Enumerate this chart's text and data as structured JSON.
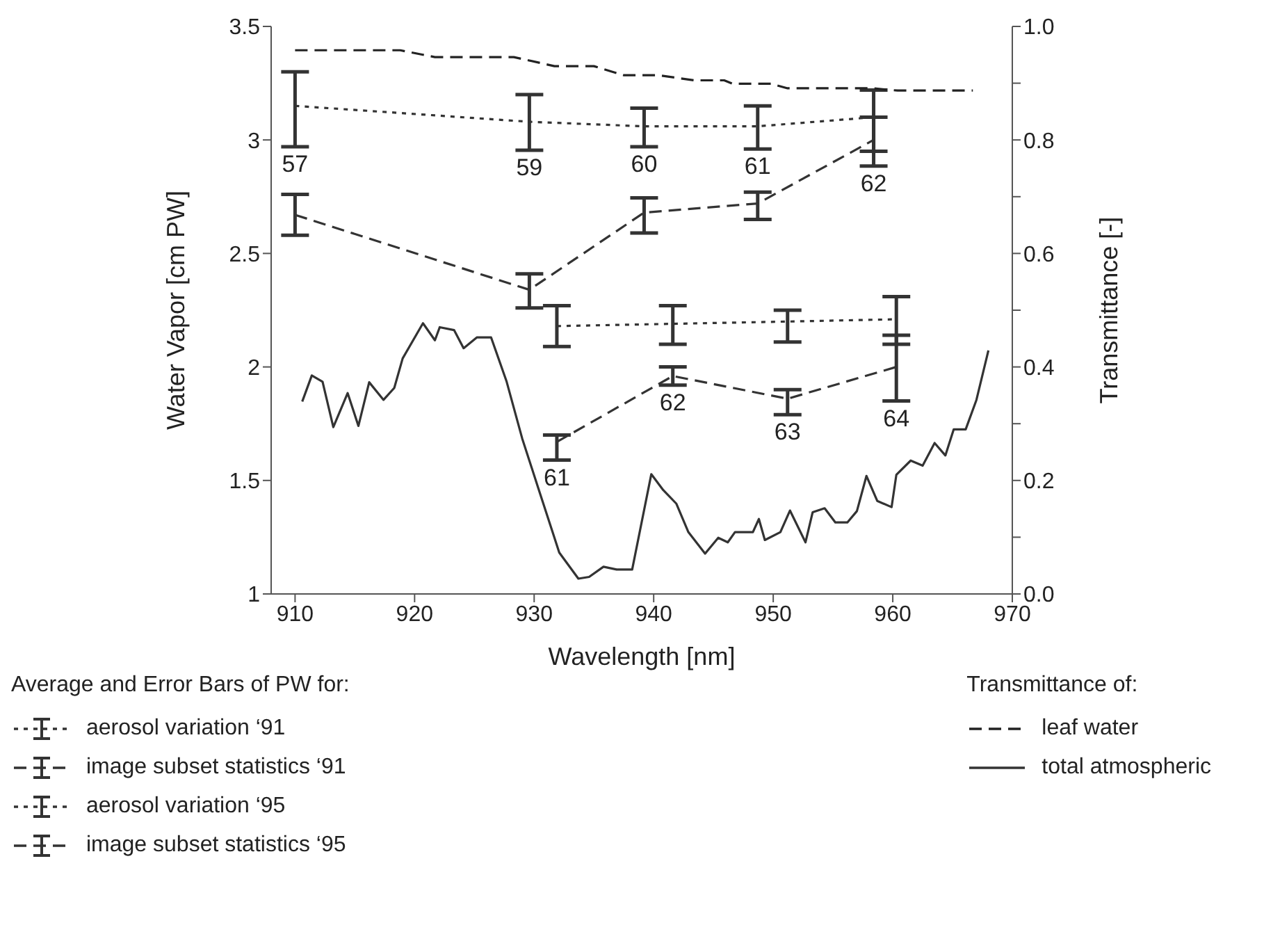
{
  "chart_data": {
    "type": "line",
    "xlabel": "Wavelength [nm]",
    "ylabel": "Water Vapor [cm PW]",
    "y2label": "Transmittance [-]",
    "xlim": [
      908,
      970
    ],
    "xticks": [
      910,
      920,
      930,
      940,
      950,
      960,
      970
    ],
    "ylim": [
      1,
      3.5
    ],
    "yticks": [
      1,
      1.5,
      2,
      2.5,
      3,
      3.5
    ],
    "y2lim": [
      0,
      1
    ],
    "y2ticks": [
      {
        "value": 0,
        "label": "0.0"
      },
      {
        "value": 0.1,
        "label": null
      },
      {
        "value": 0.2,
        "label": "0.2"
      },
      {
        "value": 0.3,
        "label": null
      },
      {
        "value": 0.4,
        "label": "0.4"
      },
      {
        "value": 0.5,
        "label": null
      },
      {
        "value": 0.6,
        "label": "0.6"
      },
      {
        "value": 0.7,
        "label": null
      },
      {
        "value": 0.8,
        "label": "0.8"
      },
      {
        "value": 0.9,
        "label": null
      },
      {
        "value": 1,
        "label": "1.0"
      }
    ],
    "legend": "bottom",
    "marker": "none",
    "legend_title": "Average and Error Bars of PW for:",
    "series": [
      {
        "name": "aerosol variation ‘91",
        "color": "#333333",
        "line_style": "dotted",
        "x": [
          910,
          929.6,
          939.2,
          948.7,
          958.4
        ],
        "values": [
          3.15,
          3.08,
          3.06,
          3.06,
          3.1
        ],
        "errors": [
          [
            2.97,
            3.3
          ],
          [
            2.955,
            3.2
          ],
          [
            2.97,
            3.14
          ],
          [
            2.96,
            3.15
          ],
          [
            2.95,
            3.22
          ]
        ]
      },
      {
        "name": "image subset statistics ‘91",
        "color": "#333333",
        "line_style": "dashed",
        "x": [
          910,
          929.6,
          939.2,
          948.7,
          958.4
        ],
        "values": [
          2.67,
          2.34,
          2.68,
          2.72,
          3.0
        ],
        "errors": [
          [
            2.58,
            2.76
          ],
          [
            2.26,
            2.41
          ],
          [
            2.59,
            2.745
          ],
          [
            2.65,
            2.77
          ],
          [
            2.885,
            3.1
          ]
        ]
      },
      {
        "name": "aerosol variation ‘95",
        "color": "#333333",
        "line_style": "dotted",
        "x": [
          931.9,
          941.6,
          951.2,
          960.3
        ],
        "values": [
          2.18,
          2.19,
          2.2,
          2.21
        ],
        "errors": [
          [
            2.09,
            2.27
          ],
          [
            2.1,
            2.27
          ],
          [
            2.11,
            2.25
          ],
          [
            2.1,
            2.31
          ]
        ]
      },
      {
        "name": "image subset statistics ‘95",
        "color": "#333333",
        "line_style": "dashed",
        "x": [
          931.9,
          941.6,
          951.2,
          960.3
        ],
        "values": [
          1.67,
          1.96,
          1.86,
          2.0
        ],
        "errors": [
          [
            1.59,
            1.7
          ],
          [
            1.92,
            2.0
          ],
          [
            1.79,
            1.9
          ],
          [
            1.85,
            2.14
          ]
        ]
      },
      {
        "name": "leaf  water",
        "color": "#222222",
        "line_style": "dashed",
        "axis": "y2",
        "x": [
          910,
          918.8,
          921.7,
          928.3,
          931.7,
          935,
          937.5,
          940.4,
          943.4,
          945.9,
          946.6,
          949.8,
          951.2,
          958.3,
          960.4,
          966.7
        ],
        "values": [
          0.958,
          0.958,
          0.946,
          0.946,
          0.93,
          0.93,
          0.914,
          0.914,
          0.905,
          0.905,
          0.899,
          0.899,
          0.891,
          0.891,
          0.887,
          0.887
        ]
      },
      {
        "name": "total atmospheric",
        "color": "#333333",
        "line_style": "solid",
        "axis": "y2",
        "x": [
          910.6,
          911.4,
          912.3,
          913.2,
          914.4,
          915.3,
          916.2,
          917.4,
          918.3,
          919,
          920.7,
          921.7,
          922.1,
          923.3,
          924.1,
          925.2,
          926.4,
          927.7,
          929,
          930.4,
          932.1,
          933.7,
          934.6,
          935.8,
          936.9,
          938.2,
          939.8,
          940.8,
          941.9,
          942.9,
          944.3,
          945.4,
          946.2,
          946.8,
          948.3,
          948.8,
          949.3,
          950.6,
          951.4,
          952.7,
          953.3,
          954.3,
          955.2,
          956.2,
          957,
          957.8,
          958.7,
          959.9,
          960.3,
          961.5,
          962.5,
          963.5,
          964.4,
          965.1,
          966.1,
          967,
          968
        ],
        "values": [
          0.339,
          0.385,
          0.374,
          0.294,
          0.354,
          0.296,
          0.373,
          0.342,
          0.363,
          0.415,
          0.477,
          0.447,
          0.47,
          0.465,
          0.433,
          0.452,
          0.452,
          0.374,
          0.274,
          0.183,
          0.073,
          0.027,
          0.03,
          0.048,
          0.043,
          0.043,
          0.211,
          0.183,
          0.159,
          0.109,
          0.071,
          0.099,
          0.091,
          0.109,
          0.109,
          0.132,
          0.095,
          0.109,
          0.147,
          0.091,
          0.144,
          0.151,
          0.126,
          0.126,
          0.146,
          0.208,
          0.164,
          0.153,
          0.21,
          0.235,
          0.226,
          0.266,
          0.244,
          0.29,
          0.29,
          0.342,
          0.429
        ]
      }
    ],
    "annotations": [
      {
        "text": "57",
        "x": 910,
        "y": 2.97
      },
      {
        "text": "59",
        "x": 929.6,
        "y": 2.955
      },
      {
        "text": "60",
        "x": 939.2,
        "y": 2.97
      },
      {
        "text": "61",
        "x": 948.7,
        "y": 2.96
      },
      {
        "text": "62",
        "x": 958.4,
        "y": 2.885
      },
      {
        "text": "61",
        "x": 931.9,
        "y": 1.59
      },
      {
        "text": "62",
        "x": 941.6,
        "y": 1.92
      },
      {
        "text": "63",
        "x": 951.2,
        "y": 1.79
      },
      {
        "text": "64",
        "x": 960.3,
        "y": 1.85
      },
      "Transmittance of:"
    ]
  }
}
